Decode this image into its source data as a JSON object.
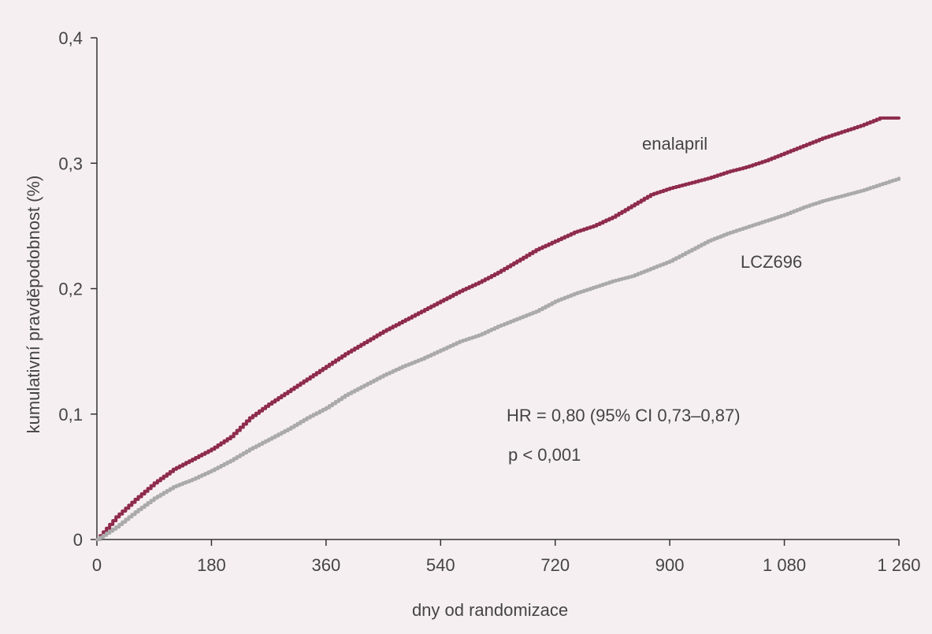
{
  "colors": {
    "background": "#f6eff2",
    "axis": "#333333",
    "text": "#444444",
    "enalapril": "#8e2b4c",
    "lcz696": "#aaaaaa"
  },
  "chart_data": {
    "type": "line",
    "xlabel": "dny od randomizace",
    "ylabel": "kumulativní pravděpodobnost (%)",
    "xlim": [
      0,
      1260
    ],
    "ylim": [
      0,
      0.4
    ],
    "x_ticks": [
      0,
      180,
      360,
      540,
      720,
      900,
      1080,
      1260
    ],
    "x_tick_labels": [
      "0",
      "180",
      "360",
      "540",
      "720",
      "900",
      "1 080",
      "1 260"
    ],
    "y_ticks": [
      0,
      0.1,
      0.2,
      0.3,
      0.4
    ],
    "y_tick_labels": [
      "0",
      "0,1",
      "0,2",
      "0,3",
      "0,4"
    ],
    "grid": false,
    "series": [
      {
        "name": "enalapril",
        "color": "#8e2b4c",
        "x": [
          0,
          30,
          60,
          90,
          120,
          150,
          180,
          210,
          240,
          270,
          300,
          330,
          360,
          390,
          420,
          450,
          480,
          510,
          540,
          570,
          600,
          630,
          660,
          690,
          720,
          750,
          780,
          810,
          840,
          870,
          900,
          930,
          960,
          990,
          1020,
          1050,
          1080,
          1110,
          1140,
          1170,
          1200,
          1230,
          1260
        ],
        "values": [
          0,
          0.018,
          0.032,
          0.045,
          0.056,
          0.064,
          0.072,
          0.082,
          0.097,
          0.108,
          0.118,
          0.128,
          0.138,
          0.148,
          0.157,
          0.166,
          0.174,
          0.182,
          0.19,
          0.198,
          0.205,
          0.213,
          0.222,
          0.231,
          0.238,
          0.245,
          0.25,
          0.257,
          0.266,
          0.275,
          0.28,
          0.284,
          0.288,
          0.293,
          0.297,
          0.302,
          0.308,
          0.314,
          0.32,
          0.325,
          0.33,
          0.336,
          0.336
        ]
      },
      {
        "name": "LCZ696",
        "color": "#aaaaaa",
        "x": [
          0,
          30,
          60,
          90,
          120,
          150,
          180,
          210,
          240,
          270,
          300,
          330,
          360,
          390,
          420,
          450,
          480,
          510,
          540,
          570,
          600,
          630,
          660,
          690,
          720,
          750,
          780,
          810,
          840,
          870,
          900,
          930,
          960,
          990,
          1020,
          1050,
          1080,
          1110,
          1140,
          1170,
          1200,
          1230,
          1260
        ],
        "values": [
          0,
          0.01,
          0.022,
          0.033,
          0.042,
          0.048,
          0.055,
          0.063,
          0.072,
          0.08,
          0.088,
          0.097,
          0.105,
          0.115,
          0.123,
          0.131,
          0.138,
          0.144,
          0.151,
          0.158,
          0.163,
          0.17,
          0.176,
          0.182,
          0.19,
          0.196,
          0.201,
          0.206,
          0.21,
          0.216,
          0.222,
          0.23,
          0.238,
          0.244,
          0.249,
          0.254,
          0.259,
          0.265,
          0.27,
          0.274,
          0.278,
          0.283,
          0.288
        ]
      }
    ],
    "series_labels": [
      "enalapril",
      "LCZ696"
    ],
    "annotations": [
      "HR = 0,80 (95% CI 0,73–0,87)",
      "p < 0,001"
    ]
  }
}
